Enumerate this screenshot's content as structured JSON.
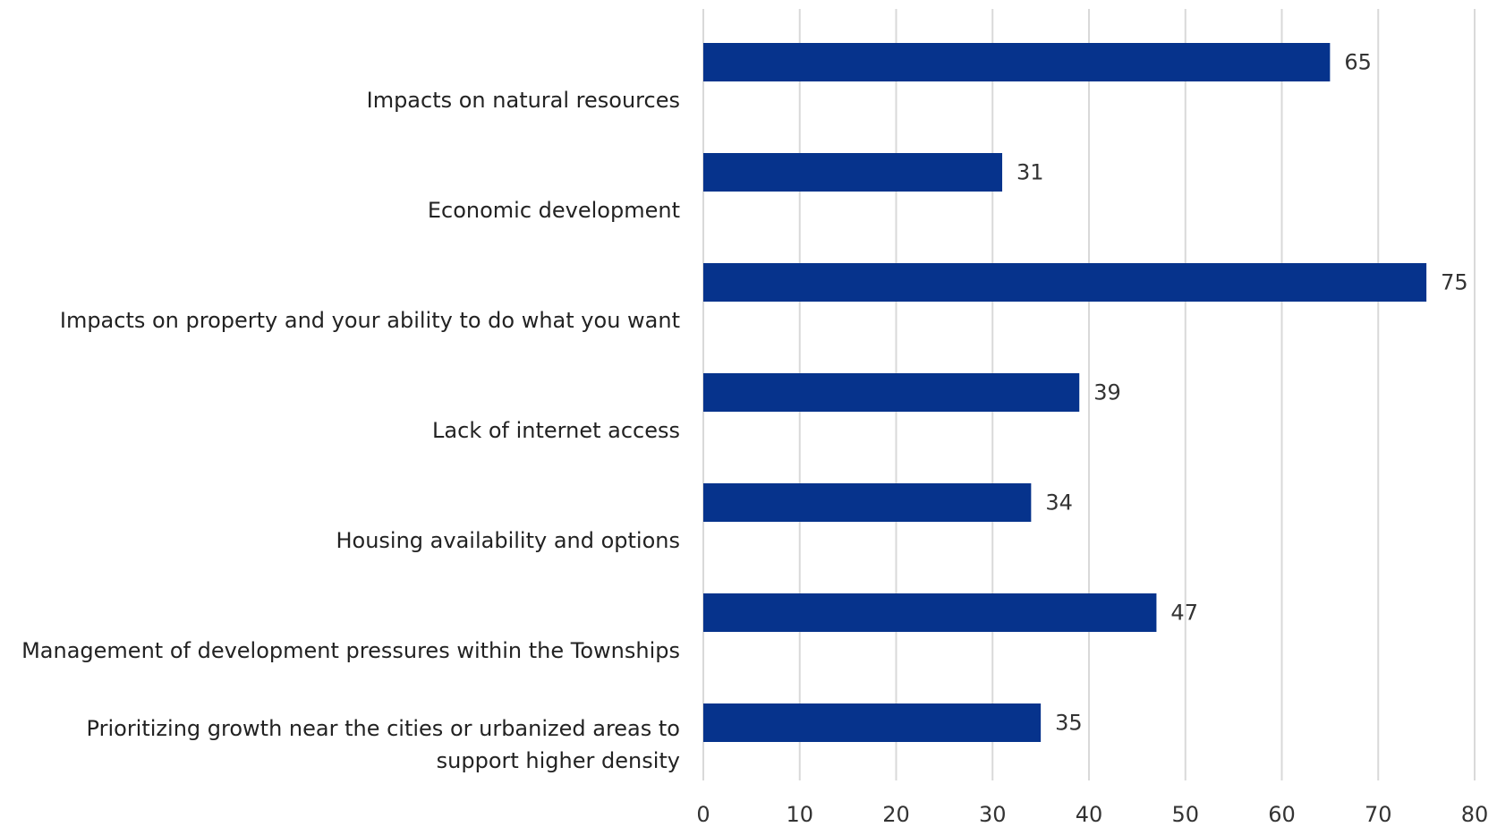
{
  "chart_data": {
    "type": "bar",
    "orientation": "horizontal",
    "categories": [
      "Impacts on natural resources",
      "Economic development",
      "Impacts on property and your ability to do what you want",
      "Lack of internet access",
      "Housing availability and options",
      "Management of development pressures within the Townships",
      "Prioritizing growth near the cities or urbanized areas to support higher density"
    ],
    "values": [
      65,
      31,
      75,
      39,
      34,
      47,
      35
    ],
    "data_labels": [
      "65",
      "31",
      "75",
      "39",
      "34",
      "47",
      "35"
    ],
    "xlim": [
      0,
      80
    ],
    "x_ticks": [
      "0",
      "10",
      "20",
      "30",
      "40",
      "50",
      "60",
      "70",
      "80"
    ],
    "title": "",
    "xlabel": "",
    "ylabel": "",
    "grid": "vertical",
    "legend": "none",
    "colors": {
      "bar": "#06338c",
      "grid": "#d9d9d9",
      "text": "#333333"
    }
  }
}
